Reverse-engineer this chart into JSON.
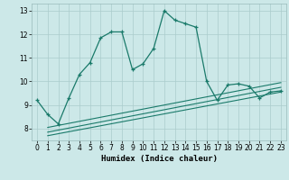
{
  "xlabel": "Humidex (Indice chaleur)",
  "xlim": [
    -0.5,
    23.5
  ],
  "ylim": [
    7.5,
    13.3
  ],
  "yticks": [
    8,
    9,
    10,
    11,
    12,
    13
  ],
  "xticks": [
    0,
    1,
    2,
    3,
    4,
    5,
    6,
    7,
    8,
    9,
    10,
    11,
    12,
    13,
    14,
    15,
    16,
    17,
    18,
    19,
    20,
    21,
    22,
    23
  ],
  "background_color": "#cce8e8",
  "grid_color": "#aacccc",
  "line_color": "#1a7a6a",
  "line1_x": [
    0,
    1,
    2,
    3,
    4,
    5,
    6,
    7,
    8,
    9,
    10,
    11,
    12,
    13,
    14,
    15,
    16,
    17,
    18,
    19,
    20,
    21,
    22,
    23
  ],
  "line1_y": [
    9.2,
    8.6,
    8.2,
    9.3,
    10.3,
    10.8,
    11.85,
    12.1,
    12.1,
    10.5,
    10.75,
    11.4,
    13.0,
    12.6,
    12.45,
    12.3,
    10.0,
    9.2,
    9.85,
    9.9,
    9.8,
    9.3,
    9.55,
    9.6
  ],
  "line2_x": [
    1,
    23
  ],
  "line2_y": [
    7.7,
    9.55
  ],
  "line3_x": [
    1,
    23
  ],
  "line3_y": [
    7.85,
    9.75
  ],
  "line4_x": [
    1,
    23
  ],
  "line4_y": [
    8.05,
    9.95
  ]
}
